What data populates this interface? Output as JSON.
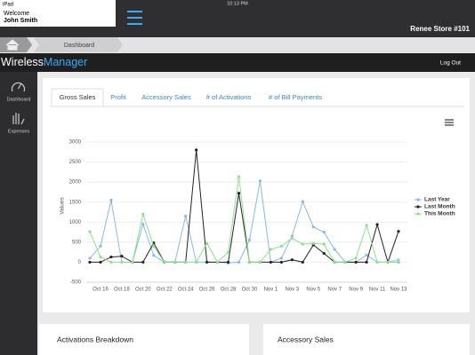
{
  "status_bar": {
    "device": "iPad",
    "time": "10:13 PM"
  },
  "user": {
    "greeting": "Welcome",
    "name": "John Smith"
  },
  "store": "Renee Store #101",
  "breadcrumb": "Dashboard",
  "brand": {
    "first": "Wireless",
    "second": "Manager"
  },
  "logout": "Log Out",
  "sidebar": [
    "Dashboard",
    "Expenses"
  ],
  "tabs": [
    "Gross Sales",
    "Profit",
    "Accessory Sales",
    "# of Activations",
    "# of Bill Payments"
  ],
  "chart_data": {
    "type": "line",
    "y_label": "Values",
    "categories": [
      null,
      "Oct 16",
      null,
      "Oct 18",
      null,
      "Oct 20",
      null,
      "Oct 22",
      null,
      "Oct 24",
      null,
      "Oct 26",
      null,
      "Oct 28",
      null,
      "Oct 30",
      null,
      "Nov 1",
      null,
      "Nov 3",
      null,
      "Nov 5",
      null,
      "Nov 7",
      null,
      "Nov 9",
      null,
      "Nov 11",
      null,
      "Nov 13"
    ],
    "series": [
      {
        "name": "Last Year",
        "color": "#8bb8e0",
        "values": [
          100,
          400,
          1550,
          0,
          0,
          950,
          170,
          0,
          0,
          1150,
          0,
          0,
          0,
          -20,
          0,
          555,
          2030,
          0,
          100,
          650,
          1510,
          880,
          750,
          320,
          0,
          0,
          180,
          0,
          0,
          0
        ]
      },
      {
        "name": "Last Month",
        "color": "#222222",
        "values": [
          0,
          0,
          130,
          150,
          0,
          0,
          480,
          0,
          0,
          0,
          2800,
          0,
          0,
          0,
          1720,
          0,
          0,
          0,
          0,
          60,
          0,
          430,
          220,
          0,
          0,
          0,
          0,
          940,
          0,
          770
        ]
      },
      {
        "name": "This Month",
        "color": "#8ee08a",
        "values": [
          760,
          130,
          0,
          0,
          0,
          1200,
          400,
          0,
          0,
          0,
          0,
          470,
          0,
          250,
          2130,
          0,
          0,
          320,
          400,
          600,
          450,
          470,
          450,
          0,
          0,
          100,
          920,
          0,
          0,
          60
        ]
      }
    ],
    "ylim": [
      -500,
      3000
    ],
    "yticks": [
      -500,
      0,
      500,
      1000,
      1500,
      2000,
      2500,
      3000
    ],
    "grid": true,
    "legend": "right"
  },
  "panels": [
    "Activations Breakdown",
    "Accessory Sales"
  ]
}
